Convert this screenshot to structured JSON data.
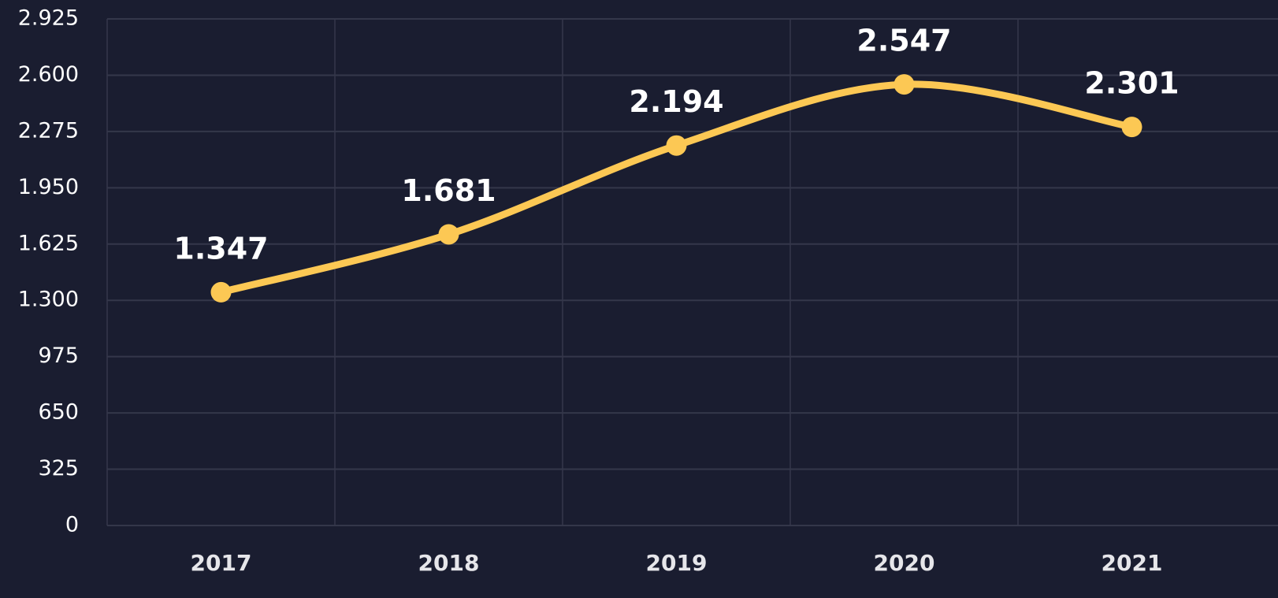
{
  "chart_data": {
    "type": "line",
    "categories": [
      "2017",
      "2018",
      "2019",
      "2020",
      "2021"
    ],
    "values": [
      1347,
      1681,
      2194,
      2547,
      2301
    ],
    "value_labels": [
      "1.347",
      "1.681",
      "2.194",
      "2.547",
      "2.301"
    ],
    "color": "#fcc854",
    "ylim": [
      0,
      2925
    ],
    "yticks": [
      0,
      325,
      650,
      975,
      {
        "value": 1300,
        "label": "1.300"
      },
      {
        "value": 1625,
        "label": "1.625"
      },
      {
        "value": 1950,
        "label": "1.950"
      },
      {
        "value": 2275,
        "label": "2.275"
      },
      {
        "value": 2600,
        "label": "2.600"
      },
      {
        "value": 2925,
        "label": "2.925"
      }
    ],
    "grid": true,
    "smooth": true
  }
}
